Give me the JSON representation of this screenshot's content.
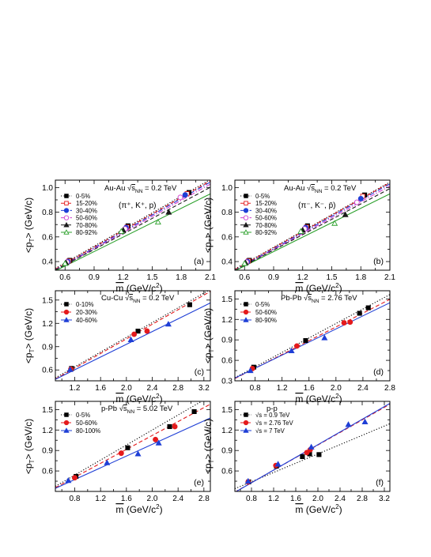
{
  "chart_data": [
    {
      "panel": "(a)",
      "type": "scatter",
      "title_lines": [
        "Au-Au √s_NN = 0.2 TeV",
        "(π⁺, K⁺, p)"
      ],
      "xlabel": "m̄ (GeV/c²)",
      "ylabel": "<p_T> (GeV/c)",
      "xlim": [
        0.5,
        2.1
      ],
      "ylim": [
        0.33,
        1.06
      ],
      "xticks": [
        "0.6",
        "0.9",
        "1.2",
        "1.5",
        "1.8",
        "2.1"
      ],
      "xtick_values": [
        0.6,
        0.9,
        1.2,
        1.5,
        1.8,
        2.1
      ],
      "yticks": [
        "0.4",
        "0.6",
        "0.8",
        "1.0"
      ],
      "ytick_values": [
        0.4,
        0.6,
        0.8,
        1.0
      ],
      "legend_position": "top-left",
      "series": [
        {
          "name": "0-5%",
          "color": "#000000",
          "marker": "square",
          "filled": true,
          "line": "dotted",
          "x": [
            0.65,
            1.25,
            1.88
          ],
          "y": [
            0.41,
            0.69,
            0.96
          ],
          "fit": [
            0.12,
            0.45
          ]
        },
        {
          "name": "15-20%",
          "color": "#e41a1c",
          "marker": "square",
          "filled": false,
          "line": "dashed",
          "x": [
            0.64,
            1.24,
            1.86
          ],
          "y": [
            0.405,
            0.68,
            0.95
          ],
          "fit": [
            0.115,
            0.447
          ]
        },
        {
          "name": "30-40%",
          "color": "#1f3fd6",
          "marker": "circle",
          "filled": true,
          "line": "dashdot",
          "x": [
            0.63,
            1.23,
            1.84
          ],
          "y": [
            0.4,
            0.675,
            0.94
          ],
          "fit": [
            0.11,
            0.445
          ]
        },
        {
          "name": "50-60%",
          "color": "#d040d0",
          "marker": "circle",
          "filled": false,
          "line": "dashdot",
          "x": [
            0.62,
            1.22,
            1.79
          ],
          "y": [
            0.395,
            0.665,
            0.92
          ],
          "fit": [
            0.11,
            0.437
          ]
        },
        {
          "name": "70-80%",
          "color": "#1a1a1a",
          "marker": "triangle",
          "filled": true,
          "line": "dashed",
          "x": [
            0.61,
            1.2,
            1.67
          ],
          "y": [
            0.39,
            0.655,
            0.8
          ],
          "fit": [
            0.12,
            0.42
          ]
        },
        {
          "name": "80-92%",
          "color": "#2ca02c",
          "marker": "triangle",
          "filled": false,
          "line": "solid",
          "x": [
            0.6,
            1.18,
            1.56
          ],
          "y": [
            0.385,
            0.645,
            0.72
          ],
          "fit": [
            0.13,
            0.39
          ]
        }
      ]
    },
    {
      "panel": "(b)",
      "type": "scatter",
      "title_lines": [
        "Au-Au √s_NN = 0.2 TeV",
        "(π⁻, K⁻, p̄)"
      ],
      "xlabel": "m̄ (GeV/c²)",
      "ylabel": "<p_T> (GeV/c)",
      "xlim": [
        0.5,
        2.1
      ],
      "ylim": [
        0.33,
        1.06
      ],
      "xticks": [
        "0.6",
        "0.9",
        "1.2",
        "1.5",
        "1.8",
        "2.1"
      ],
      "xtick_values": [
        0.6,
        0.9,
        1.2,
        1.5,
        1.8,
        2.1
      ],
      "yticks": [
        "0.4",
        "0.6",
        "0.8",
        "1.0"
      ],
      "ytick_values": [
        0.4,
        0.6,
        0.8,
        1.0
      ],
      "legend_position": "top-left",
      "series": [
        {
          "name": "0-5%",
          "color": "#000000",
          "marker": "square",
          "filled": true,
          "line": "dotted",
          "x": [
            0.65,
            1.25,
            1.84
          ],
          "y": [
            0.41,
            0.69,
            0.94
          ],
          "fit": [
            0.12,
            0.44
          ]
        },
        {
          "name": "15-20%",
          "color": "#e41a1c",
          "marker": "square",
          "filled": false,
          "line": "dashed",
          "x": [
            0.64,
            1.24,
            1.82
          ],
          "y": [
            0.405,
            0.68,
            0.93
          ],
          "fit": [
            0.115,
            0.44
          ]
        },
        {
          "name": "30-40%",
          "color": "#1f3fd6",
          "marker": "circle",
          "filled": true,
          "line": "dashdot",
          "x": [
            0.63,
            1.23,
            1.8
          ],
          "y": [
            0.4,
            0.675,
            0.91
          ],
          "fit": [
            0.11,
            0.438
          ]
        },
        {
          "name": "50-60%",
          "color": "#d040d0",
          "marker": "circle",
          "filled": false,
          "line": "dashdot",
          "x": [
            0.62,
            1.22,
            1.76
          ],
          "y": [
            0.395,
            0.665,
            0.88
          ],
          "fit": [
            0.11,
            0.43
          ]
        },
        {
          "name": "70-80%",
          "color": "#1a1a1a",
          "marker": "triangle",
          "filled": true,
          "line": "dashed",
          "x": [
            0.61,
            1.2,
            1.64
          ],
          "y": [
            0.39,
            0.655,
            0.78
          ],
          "fit": [
            0.12,
            0.415
          ]
        },
        {
          "name": "80-92%",
          "color": "#2ca02c",
          "marker": "triangle",
          "filled": false,
          "line": "solid",
          "x": [
            0.6,
            1.18,
            1.53
          ],
          "y": [
            0.385,
            0.645,
            0.71
          ],
          "fit": [
            0.13,
            0.39
          ]
        }
      ]
    },
    {
      "panel": "(c)",
      "type": "scatter",
      "title_lines": [
        "Cu-Cu √s_NN = 0.2 TeV"
      ],
      "xlabel": "m̄ (GeV/c²)",
      "ylabel": "<p_T> (GeV/c)",
      "xlim": [
        0.9,
        3.3
      ],
      "ylim": [
        0.46,
        1.62
      ],
      "xticks": [
        "1.2",
        "1.6",
        "2.0",
        "2.4",
        "2.8",
        "3.2"
      ],
      "xtick_values": [
        1.2,
        1.6,
        2.0,
        2.4,
        2.8,
        3.2
      ],
      "yticks": [
        "0.6",
        "0.9",
        "1.2",
        "1.5"
      ],
      "ytick_values": [
        0.6,
        0.9,
        1.2,
        1.5
      ],
      "legend_position": "top-left",
      "series": [
        {
          "name": "0-10%",
          "color": "#000000",
          "marker": "square",
          "filled": true,
          "line": "dotted",
          "x": [
            1.15,
            2.18,
            2.98
          ],
          "y": [
            0.62,
            1.1,
            1.44
          ],
          "fit": [
            0.07,
            0.475
          ]
        },
        {
          "name": "20-30%",
          "color": "#e41a1c",
          "marker": "circle",
          "filled": true,
          "line": "dashed",
          "x": [
            1.14,
            2.12,
            2.32
          ],
          "y": [
            0.61,
            1.06,
            1.1
          ],
          "fit": [
            0.06,
            0.47
          ]
        },
        {
          "name": "40-60%",
          "color": "#1f3fd6",
          "marker": "triangle",
          "filled": true,
          "line": "solid",
          "x": [
            1.13,
            2.07,
            2.65
          ],
          "y": [
            0.605,
            0.99,
            1.19
          ],
          "fit": [
            0.11,
            0.41
          ]
        }
      ]
    },
    {
      "panel": "(d)",
      "type": "scatter",
      "title_lines": [
        "Pb-Pb √s_NN = 2.76 TeV"
      ],
      "xlabel": "m̄ (GeV/c²)",
      "ylabel": "<p_T> (GeV/c)",
      "xlim": [
        0.5,
        2.8
      ],
      "ylim": [
        0.3,
        1.62
      ],
      "xticks": [
        "0.8",
        "1.2",
        "1.6",
        "2.0",
        "2.4",
        "2.8"
      ],
      "xtick_values": [
        0.8,
        1.2,
        1.6,
        2.0,
        2.4,
        2.8
      ],
      "yticks": [
        "0.3",
        "0.6",
        "0.9",
        "1.2",
        "1.5"
      ],
      "ytick_values": [
        0.3,
        0.6,
        0.9,
        1.2,
        1.5
      ],
      "legend_position": "top-left",
      "series": [
        {
          "name": "0-5%",
          "color": "#000000",
          "marker": "square",
          "filled": true,
          "line": "dotted",
          "x": [
            0.78,
            1.55,
            2.35,
            2.48
          ],
          "y": [
            0.5,
            0.89,
            1.29,
            1.37
          ],
          "fit": [
            0.08,
            0.53
          ]
        },
        {
          "name": "50-60%",
          "color": "#e41a1c",
          "marker": "circle",
          "filled": true,
          "line": "dashed",
          "x": [
            0.76,
            1.42,
            2.12,
            2.21
          ],
          "y": [
            0.48,
            0.81,
            1.15,
            1.16
          ],
          "fit": [
            0.08,
            0.505
          ]
        },
        {
          "name": "80-90%",
          "color": "#1f3fd6",
          "marker": "triangle",
          "filled": true,
          "line": "solid",
          "x": [
            0.73,
            1.34,
            1.83
          ],
          "y": [
            0.45,
            0.74,
            0.93
          ],
          "fit": [
            0.1,
            0.48
          ]
        }
      ]
    },
    {
      "panel": "(e)",
      "type": "scatter",
      "title_lines": [
        "p-Pb √s_NN = 5.02 TeV"
      ],
      "xlabel": "m̄ (GeV/c²)",
      "ylabel": "<p_T> (GeV/c)",
      "xlim": [
        0.5,
        2.9
      ],
      "ylim": [
        0.3,
        1.62
      ],
      "xticks": [
        "0.8",
        "1.2",
        "1.6",
        "2.0",
        "2.4",
        "2.8"
      ],
      "xtick_values": [
        0.8,
        1.2,
        1.6,
        2.0,
        2.4,
        2.8
      ],
      "yticks": [
        "0.6",
        "0.9",
        "1.2",
        "1.5"
      ],
      "ytick_values": [
        0.6,
        0.9,
        1.2,
        1.5
      ],
      "legend_position": "top-left",
      "series": [
        {
          "name": "0-5%",
          "color": "#000000",
          "marker": "square",
          "filled": true,
          "line": "dotted",
          "x": [
            0.82,
            1.62,
            2.27,
            2.65
          ],
          "y": [
            0.52,
            0.94,
            1.25,
            1.47
          ],
          "fit": [
            0.1,
            0.55
          ]
        },
        {
          "name": "50-60%",
          "color": "#e41a1c",
          "marker": "circle",
          "filled": true,
          "line": "dashed",
          "x": [
            0.8,
            1.52,
            2.05,
            2.35
          ],
          "y": [
            0.5,
            0.86,
            1.06,
            1.25
          ],
          "fit": [
            0.1,
            0.51
          ]
        },
        {
          "name": "80-100%",
          "color": "#1f3fd6",
          "marker": "triangle",
          "filled": true,
          "line": "solid",
          "x": [
            0.7,
            1.3,
            1.78,
            2.1
          ],
          "y": [
            0.46,
            0.72,
            0.85,
            1.01
          ],
          "fit": [
            0.13,
            0.43
          ]
        }
      ]
    },
    {
      "panel": "(f)",
      "type": "scatter",
      "title_lines": [
        "p-p"
      ],
      "xlabel": "m̄ (GeV/c²)",
      "ylabel": "<p_T> (GeV/c)",
      "xlim": [
        0.5,
        3.3
      ],
      "ylim": [
        0.3,
        1.62
      ],
      "xticks": [
        "0.8",
        "1.2",
        "1.6",
        "2.0",
        "2.4",
        "2.8",
        "3.2"
      ],
      "xtick_values": [
        0.8,
        1.2,
        1.6,
        2.0,
        2.4,
        2.8,
        3.2
      ],
      "yticks": [
        "0.6",
        "0.9",
        "1.2",
        "1.5"
      ],
      "ytick_values": [
        0.6,
        0.9,
        1.2,
        1.5
      ],
      "legend_position": "top-left",
      "series": [
        {
          "name": "√s = 0.9 TeV",
          "color": "#000000",
          "marker": "square",
          "filled": true,
          "line": "dotted",
          "x": [
            0.75,
            1.25,
            1.72,
            1.85,
            2.02
          ],
          "y": [
            0.44,
            0.67,
            0.81,
            0.85,
            0.84
          ],
          "fit": [
            0.17,
            0.34
          ]
        },
        {
          "name": "√s = 2.76 TeV",
          "color": "#e41a1c",
          "marker": "circle",
          "filled": true,
          "line": "dashed",
          "x": [
            0.74,
            1.24,
            1.8,
            1.86
          ],
          "y": [
            0.44,
            0.68,
            0.87,
            0.91
          ],
          "fit": [
            0.06,
            0.46
          ]
        },
        {
          "name": "√s = 7 TeV",
          "color": "#1f3fd6",
          "marker": "triangle",
          "filled": true,
          "line": "solid",
          "x": [
            0.74,
            1.28,
            1.88,
            2.55,
            2.85
          ],
          "y": [
            0.45,
            0.7,
            0.95,
            1.28,
            1.32
          ],
          "fit": [
            0.055,
            0.465
          ]
        }
      ]
    }
  ]
}
